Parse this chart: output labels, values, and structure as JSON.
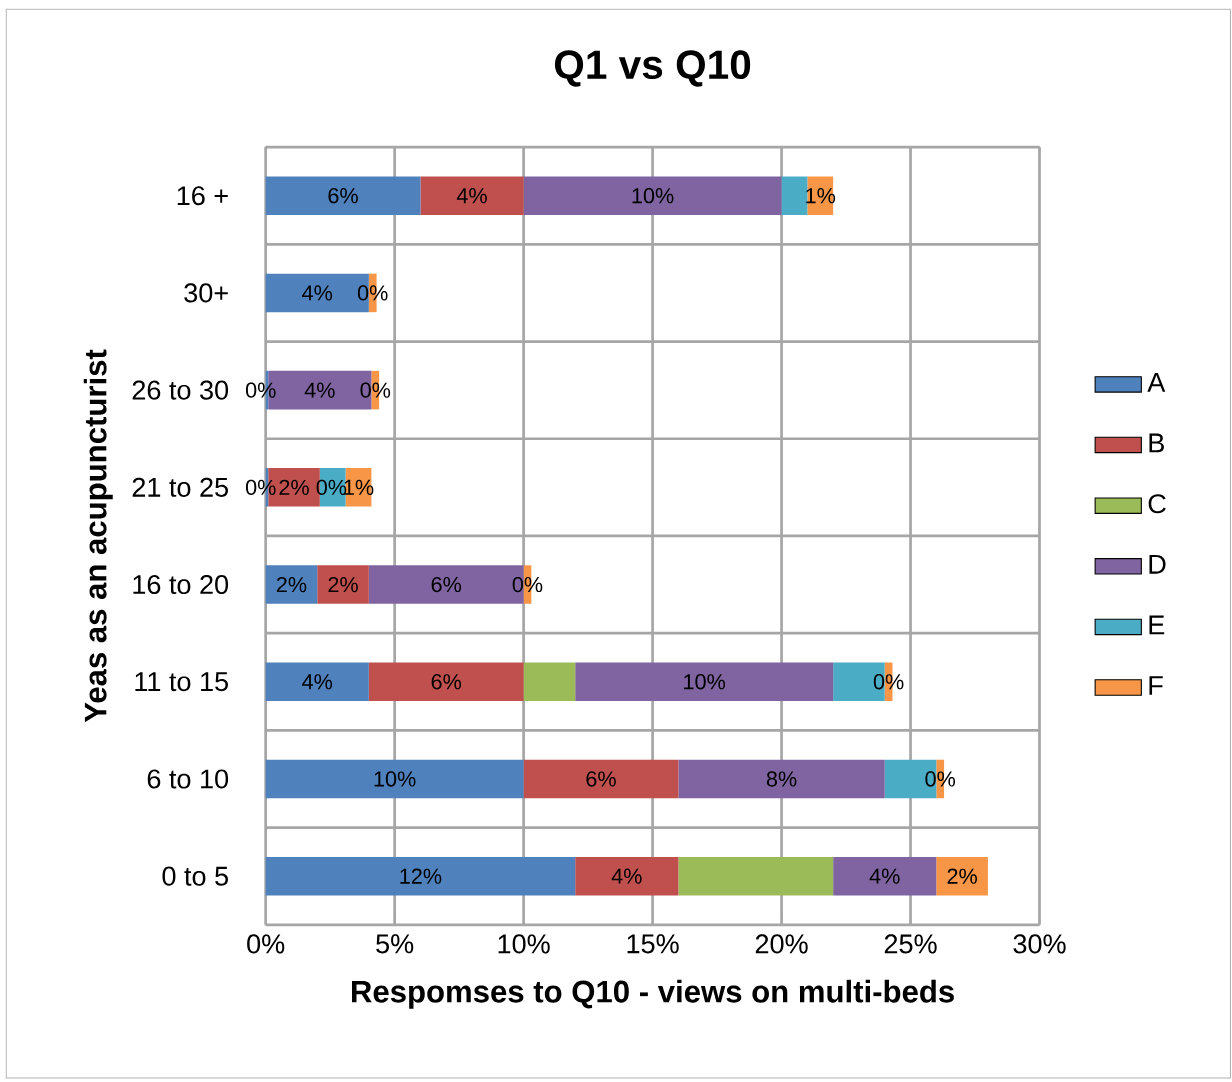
{
  "chart_data": {
    "type": "bar",
    "orientation": "horizontal",
    "stacked": true,
    "title": "Q1 vs Q10",
    "xlabel": "Respomses to Q10 - views on multi-beds",
    "ylabel": "Yeas as an acupuncturist",
    "categories": [
      "16 +",
      "30+",
      "26 to 30",
      "21 to 25",
      "16 to 20",
      "11 to 15",
      "6 to 10",
      "0 to 5"
    ],
    "series": [
      {
        "name": "A",
        "color": "#4f81bd",
        "values": [
          6,
          4,
          0.1,
          0.1,
          2,
          4,
          10,
          12
        ],
        "value_labels": [
          "6%",
          "4%",
          "0%",
          "0%",
          "2%",
          "4%",
          "10%",
          "12%"
        ]
      },
      {
        "name": "B",
        "color": "#c0504d",
        "values": [
          4,
          0,
          0,
          2,
          2,
          6,
          6,
          4
        ],
        "value_labels": [
          "4%",
          null,
          null,
          "2%",
          "2%",
          "6%",
          "6%",
          "4%"
        ]
      },
      {
        "name": "C",
        "color": "#9bbb59",
        "values": [
          0,
          0,
          0,
          0,
          0,
          2,
          0,
          6
        ],
        "value_labels": [
          null,
          null,
          null,
          "0%",
          null,
          null,
          null,
          null
        ]
      },
      {
        "name": "D",
        "color": "#8064a2",
        "values": [
          10,
          0,
          4,
          0,
          6,
          10,
          8,
          4
        ],
        "value_labels": [
          "10%",
          null,
          "4%",
          null,
          "6%",
          "10%",
          "8%",
          "4%"
        ]
      },
      {
        "name": "E",
        "color": "#4bacc6",
        "values": [
          1,
          0,
          0,
          1,
          0,
          2,
          2,
          0
        ]
      },
      {
        "name": "F",
        "color": "#f79646",
        "values": [
          1,
          0.3,
          0.3,
          1,
          0.3,
          0.3,
          0.3,
          2
        ],
        "value_labels": [
          "1%",
          "0%",
          "0%",
          "1%",
          "0%",
          "0%",
          "0%",
          "2%"
        ]
      }
    ],
    "xlim": [
      0,
      30
    ],
    "xticks": [
      {
        "value": 0,
        "label": "0%"
      },
      {
        "value": 5,
        "label": "5%"
      },
      {
        "value": 10,
        "label": "10%"
      },
      {
        "value": 15,
        "label": "15%"
      },
      {
        "value": 20,
        "label": "20%"
      },
      {
        "value": 25,
        "label": "25%"
      },
      {
        "value": 30,
        "label": "30%"
      }
    ],
    "grid": true,
    "legend": "right"
  }
}
